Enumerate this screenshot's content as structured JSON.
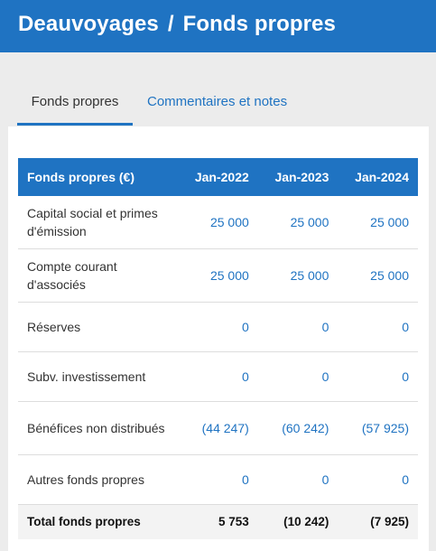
{
  "header": {
    "company": "Deauvoyages",
    "separator": "/",
    "page": "Fonds propres"
  },
  "tabs": [
    {
      "label": "Fonds propres",
      "active": true
    },
    {
      "label": "Commentaires et notes",
      "active": false
    }
  ],
  "table": {
    "headers": [
      "Fonds propres (€)",
      "Jan-2022",
      "Jan-2023",
      "Jan-2024"
    ],
    "rows": [
      {
        "label": "Capital social et primes d'émission",
        "values": [
          "25 000",
          "25 000",
          "25 000"
        ]
      },
      {
        "label": "Compte courant d'associés",
        "values": [
          "25 000",
          "25 000",
          "25 000"
        ]
      },
      {
        "label": "Réserves",
        "values": [
          "0",
          "0",
          "0"
        ]
      },
      {
        "label": "Subv. investissement",
        "values": [
          "0",
          "0",
          "0"
        ]
      },
      {
        "label": "Bénéfices non distribués",
        "values": [
          "(44 247)",
          "(60 242)",
          "(57 925)"
        ]
      },
      {
        "label": "Autres fonds propres",
        "values": [
          "0",
          "0",
          "0"
        ]
      }
    ],
    "total": {
      "label": "Total fonds propres",
      "values": [
        "5 753",
        "(10 242)",
        "(7 925)"
      ]
    }
  },
  "colors": {
    "brand": "#1f73c2",
    "page_background": "#ececec",
    "total_row_background": "#f3f3f3"
  }
}
